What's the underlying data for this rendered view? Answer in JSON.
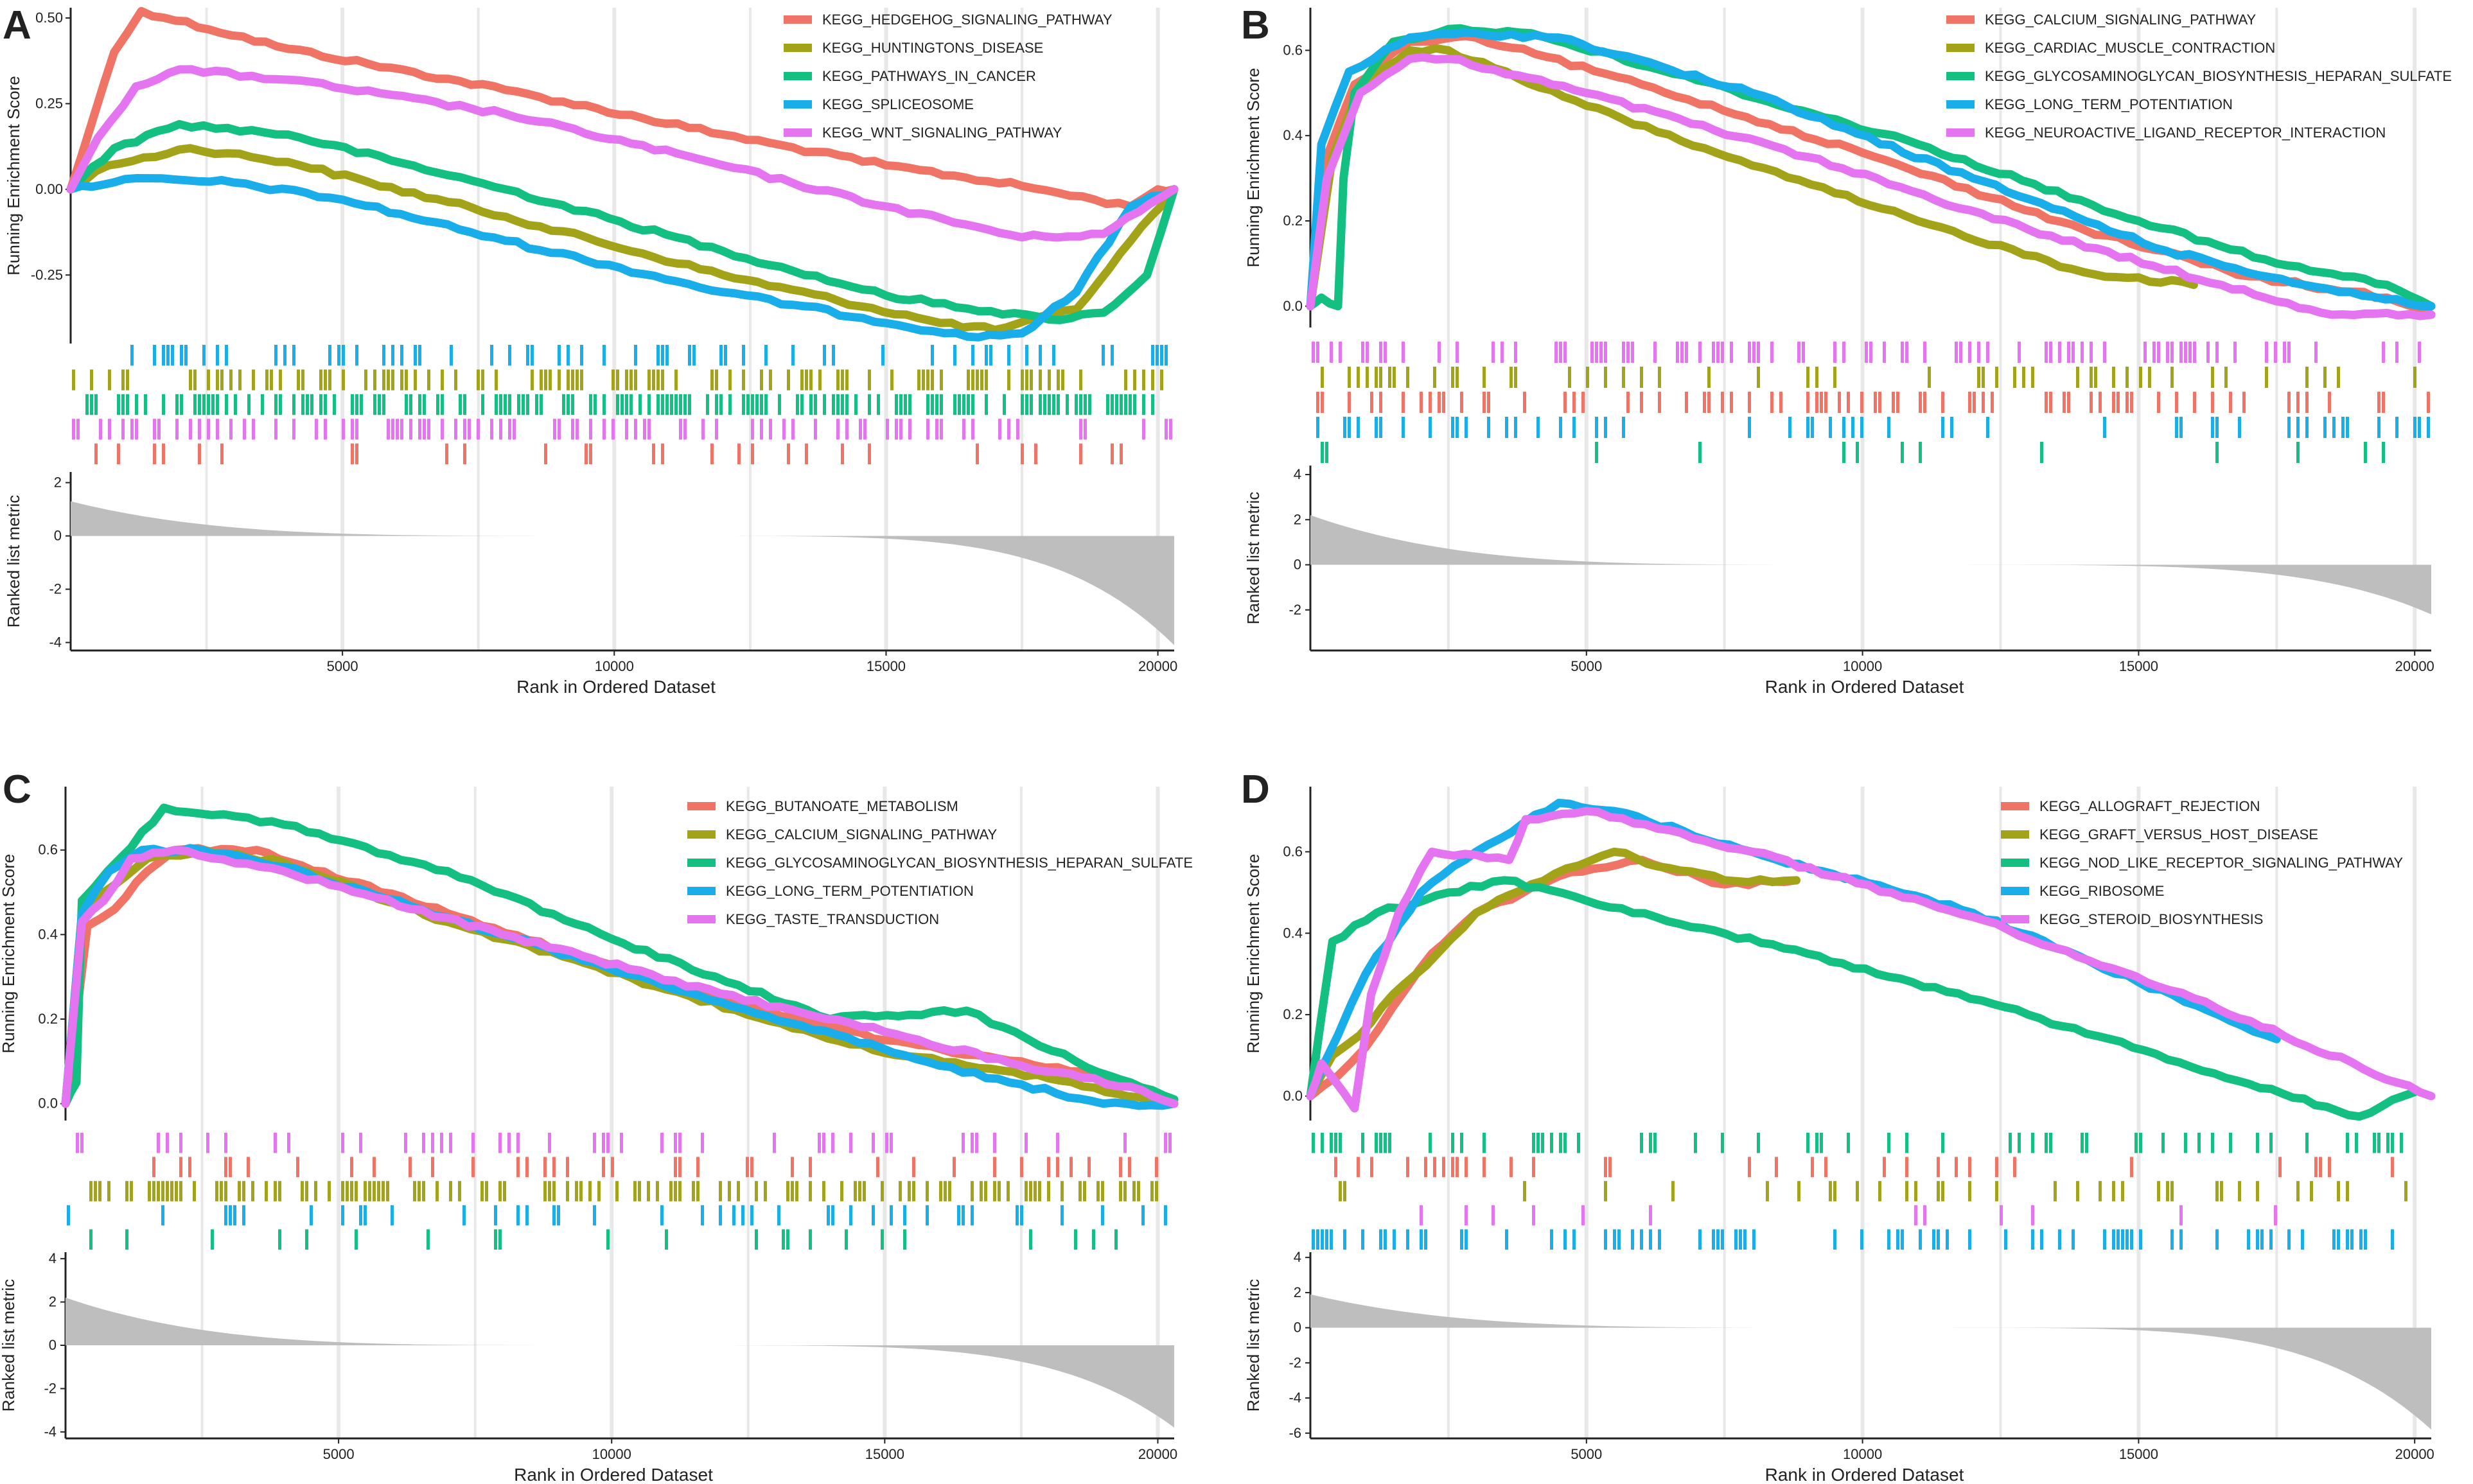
{
  "figure": {
    "panel_letters": [
      "A",
      "B",
      "C",
      "D"
    ]
  },
  "colors": {
    "red": "#F07466",
    "olive": "#A3A31A",
    "green": "#14BF82",
    "blue": "#19AEEA",
    "magenta": "#E474F0",
    "gray": "#BEBEBE"
  },
  "chart_data": [
    {
      "type": "line",
      "panel": "A",
      "xlabel": "Rank in Ordered Dataset",
      "ylabel_top": "Running Enrichment Score",
      "ylabel_bottom": "Ranked list metric",
      "xlim": [
        0,
        20300
      ],
      "ylim": [
        -0.45,
        0.53
      ],
      "xticks": [
        "5000",
        "10000",
        "15000",
        "20000"
      ],
      "xtick_values": [
        5000,
        10000,
        15000,
        20000
      ],
      "yticks": [
        "-0.25",
        "0.00",
        "0.25",
        "0.50"
      ],
      "ytick_values": [
        -0.25,
        0,
        0.25,
        0.5
      ],
      "metric_ylim": [
        -4.3,
        2.4
      ],
      "metric_yticks": [
        "-4",
        "-2",
        "0",
        "2"
      ],
      "metric_ytick_values": [
        -4,
        -2,
        0,
        2
      ],
      "metric_max": 1.3,
      "metric_min": -4.1,
      "series": [
        {
          "name": "KEGG_HEDGEHOG_SIGNALING_PATHWAY",
          "color": "red",
          "x": [
            0,
            400,
            800,
            1300,
            4000,
            8000,
            12000,
            15000,
            17500,
            19500,
            20000,
            20300
          ],
          "y": [
            0,
            0.2,
            0.4,
            0.52,
            0.41,
            0.29,
            0.16,
            0.07,
            0.01,
            -0.05,
            0.0,
            0.0
          ]
        },
        {
          "name": "KEGG_HUNTINGTONS_DISEASE",
          "color": "olive",
          "x": [
            0,
            700,
            2200,
            4000,
            8000,
            12000,
            16000,
            17000,
            18500,
            19500,
            20300
          ],
          "y": [
            0,
            0.07,
            0.12,
            0.08,
            -0.08,
            -0.25,
            -0.39,
            -0.41,
            -0.35,
            -0.15,
            0.0
          ]
        },
        {
          "name": "KEGG_PATHWAYS_IN_CANCER",
          "color": "green",
          "x": [
            0,
            800,
            2000,
            4000,
            8000,
            12000,
            15000,
            18000,
            19000,
            19800,
            20300
          ],
          "y": [
            0,
            0.12,
            0.19,
            0.16,
            0.0,
            -0.18,
            -0.31,
            -0.38,
            -0.36,
            -0.25,
            0.0
          ]
        },
        {
          "name": "KEGG_SPLICEOSOME",
          "color": "blue",
          "x": [
            0,
            1000,
            3000,
            5000,
            8000,
            12000,
            16500,
            17500,
            18500,
            19500,
            20300
          ],
          "y": [
            0,
            0.03,
            0.02,
            -0.03,
            -0.15,
            -0.3,
            -0.43,
            -0.42,
            -0.3,
            -0.05,
            0.0
          ]
        },
        {
          "name": "KEGG_WNT_SIGNALING_PATHWAY",
          "color": "magenta",
          "x": [
            0,
            500,
            1200,
            2000,
            4000,
            8000,
            12000,
            15000,
            17500,
            19000,
            20300
          ],
          "y": [
            0,
            0.15,
            0.3,
            0.35,
            0.32,
            0.22,
            0.07,
            -0.05,
            -0.14,
            -0.13,
            0.0
          ]
        }
      ],
      "hit_rows": [
        {
          "color": "blue",
          "density": 0.28
        },
        {
          "color": "olive",
          "density": 0.34
        },
        {
          "color": "green",
          "density": 0.55
        },
        {
          "color": "magenta",
          "density": 0.32
        },
        {
          "color": "red",
          "density": 0.12
        }
      ]
    },
    {
      "type": "line",
      "panel": "B",
      "xlabel": "Rank in Ordered Dataset",
      "ylabel_top": "Running Enrichment Score",
      "ylabel_bottom": "Ranked list metric",
      "xlim": [
        0,
        20300
      ],
      "ylim": [
        -0.05,
        0.7
      ],
      "xticks": [
        "5000",
        "10000",
        "15000",
        "20000"
      ],
      "xtick_values": [
        5000,
        10000,
        15000,
        20000
      ],
      "yticks": [
        "0.0",
        "0.2",
        "0.4",
        "0.6"
      ],
      "ytick_values": [
        0,
        0.2,
        0.4,
        0.6
      ],
      "metric_ylim": [
        -3.8,
        4.4
      ],
      "metric_yticks": [
        "-2",
        "0",
        "2",
        "4"
      ],
      "metric_ytick_values": [
        -2,
        0,
        2,
        4
      ],
      "metric_max": 2.2,
      "metric_min": -2.2,
      "series": [
        {
          "name": "KEGG_CALCIUM_SIGNALING_PATHWAY",
          "color": "red",
          "x": [
            0,
            300,
            800,
            1800,
            3000,
            6000,
            10000,
            14000,
            17000,
            19500,
            20300
          ],
          "y": [
            0,
            0.35,
            0.52,
            0.62,
            0.63,
            0.52,
            0.36,
            0.18,
            0.07,
            0.02,
            -0.02
          ]
        },
        {
          "name": "KEGG_CARDIAC_MUSCLE_CONTRACTION",
          "color": "olive",
          "x": [
            0,
            400,
            900,
            1800,
            2500,
            5000,
            8000,
            11000,
            14000,
            16000
          ],
          "y": [
            0,
            0.35,
            0.52,
            0.6,
            0.6,
            0.47,
            0.33,
            0.2,
            0.08,
            0.05
          ]
        },
        {
          "name": "KEGG_GLYCOSAMINOGLYCAN_BIOSYNTHESIS_HEPARAN_SULFATE",
          "color": "green",
          "x": [
            0,
            200,
            500,
            600,
            800,
            1500,
            2500,
            4000,
            7000,
            11000,
            15000,
            17500,
            19500,
            20300
          ],
          "y": [
            0,
            0.02,
            0.0,
            0.3,
            0.5,
            0.62,
            0.65,
            0.64,
            0.53,
            0.38,
            0.2,
            0.1,
            0.05,
            0.0
          ]
        },
        {
          "name": "KEGG_LONG_TERM_POTENTIATION",
          "color": "blue",
          "x": [
            0,
            200,
            700,
            1800,
            3000,
            4500,
            8000,
            12000,
            15500,
            18000,
            20300
          ],
          "y": [
            0,
            0.38,
            0.55,
            0.63,
            0.64,
            0.63,
            0.5,
            0.3,
            0.13,
            0.05,
            0.0
          ]
        },
        {
          "name": "KEGG_NEUROACTIVE_LIGAND_RECEPTOR_INTERACTION",
          "color": "magenta",
          "x": [
            0,
            300,
            900,
            1800,
            2500,
            5000,
            9000,
            13000,
            16500,
            18500,
            20300
          ],
          "y": [
            0,
            0.3,
            0.5,
            0.58,
            0.58,
            0.5,
            0.35,
            0.18,
            0.05,
            -0.02,
            -0.02
          ]
        }
      ],
      "hit_rows": [
        {
          "color": "magenta",
          "density": 0.34
        },
        {
          "color": "olive",
          "density": 0.24
        },
        {
          "color": "red",
          "density": 0.32
        },
        {
          "color": "blue",
          "density": 0.18
        },
        {
          "color": "green",
          "density": 0.07
        }
      ]
    },
    {
      "type": "line",
      "panel": "C",
      "xlabel": "Rank in Ordered Dataset",
      "ylabel_top": "Running Enrichment Score",
      "ylabel_bottom": "Ranked list metric",
      "xlim": [
        0,
        20300
      ],
      "ylim": [
        -0.04,
        0.75
      ],
      "xticks": [
        "5000",
        "10000",
        "15000",
        "20000"
      ],
      "xtick_values": [
        5000,
        10000,
        15000,
        20000
      ],
      "yticks": [
        "0.0",
        "0.2",
        "0.4",
        "0.6"
      ],
      "ytick_values": [
        0,
        0.2,
        0.4,
        0.6
      ],
      "metric_ylim": [
        -4.3,
        4.3
      ],
      "metric_yticks": [
        "-4",
        "-2",
        "0",
        "2",
        "4"
      ],
      "metric_ytick_values": [
        -4,
        -2,
        0,
        2,
        4
      ],
      "metric_max": 2.2,
      "metric_min": -3.8,
      "series": [
        {
          "name": "KEGG_BUTANOATE_METABOLISM",
          "color": "red",
          "x": [
            0,
            400,
            900,
            1500,
            2000,
            3500,
            7000,
            11000,
            15000,
            17500,
            19500,
            20300
          ],
          "y": [
            0,
            0.42,
            0.46,
            0.55,
            0.6,
            0.6,
            0.45,
            0.28,
            0.15,
            0.1,
            0.05,
            0.0
          ]
        },
        {
          "name": "KEGG_CALCIUM_SIGNALING_PATHWAY",
          "color": "olive",
          "x": [
            0,
            300,
            700,
            1500,
            2500,
            4000,
            7000,
            11000,
            15000,
            18000,
            20300
          ],
          "y": [
            0,
            0.45,
            0.5,
            0.58,
            0.6,
            0.57,
            0.43,
            0.27,
            0.12,
            0.06,
            0.0
          ]
        },
        {
          "name": "KEGG_GLYCOSAMINOGLYCAN_BIOSYNTHESIS_HEPARAN_SULFATE",
          "color": "green",
          "x": [
            0,
            200,
            300,
            1000,
            1800,
            4000,
            7000,
            10000,
            14000,
            16500,
            18500,
            20300
          ],
          "y": [
            0,
            0.05,
            0.48,
            0.58,
            0.7,
            0.66,
            0.55,
            0.39,
            0.2,
            0.22,
            0.1,
            0.01
          ]
        },
        {
          "name": "KEGG_LONG_TERM_POTENTIATION",
          "color": "blue",
          "x": [
            0,
            300,
            800,
            1400,
            2500,
            4000,
            8000,
            12000,
            16000,
            19000,
            20300
          ],
          "y": [
            0,
            0.45,
            0.55,
            0.6,
            0.6,
            0.56,
            0.4,
            0.24,
            0.09,
            0.0,
            0.0
          ]
        },
        {
          "name": "KEGG_TASTE_TRANSDUCTION",
          "color": "magenta",
          "x": [
            0,
            300,
            700,
            1200,
            2000,
            4000,
            8000,
            12000,
            15000,
            17500,
            19500,
            20300
          ],
          "y": [
            0,
            0.43,
            0.48,
            0.58,
            0.6,
            0.55,
            0.4,
            0.26,
            0.17,
            0.09,
            0.04,
            0.0
          ]
        }
      ],
      "hit_rows": [
        {
          "color": "magenta",
          "density": 0.15
        },
        {
          "color": "red",
          "density": 0.14
        },
        {
          "color": "olive",
          "density": 0.4
        },
        {
          "color": "blue",
          "density": 0.16
        },
        {
          "color": "green",
          "density": 0.08
        }
      ]
    },
    {
      "type": "line",
      "panel": "D",
      "xlabel": "Rank in Ordered Dataset",
      "ylabel_top": "Running Enrichment Score",
      "ylabel_bottom": "Ranked list metric",
      "xlim": [
        0,
        20300
      ],
      "ylim": [
        -0.06,
        0.76
      ],
      "xticks": [
        "5000",
        "10000",
        "15000",
        "20000"
      ],
      "xtick_values": [
        5000,
        10000,
        15000,
        20000
      ],
      "yticks": [
        "0.0",
        "0.2",
        "0.4",
        "0.6"
      ],
      "ytick_values": [
        0,
        0.2,
        0.4,
        0.6
      ],
      "metric_ylim": [
        -6.3,
        4.3
      ],
      "metric_yticks": [
        "-6",
        "-4",
        "-2",
        "0",
        "2",
        "4"
      ],
      "metric_ytick_values": [
        -6,
        -4,
        -2,
        0,
        2,
        4
      ],
      "metric_max": 1.9,
      "metric_min": -5.8,
      "series": [
        {
          "name": "KEGG_ALLOGRAFT_REJECTION",
          "color": "red",
          "x": [
            0,
            500,
            1000,
            1500,
            2200,
            3000,
            4500,
            6000,
            7500,
            8800
          ],
          "y": [
            0,
            0.05,
            0.12,
            0.22,
            0.35,
            0.45,
            0.54,
            0.58,
            0.52,
            0.53
          ]
        },
        {
          "name": "KEGG_GRAFT_VERSUS_HOST_DISEASE",
          "color": "olive",
          "x": [
            0,
            400,
            900,
            1500,
            2300,
            3000,
            4000,
            5500,
            6500,
            7500,
            8800
          ],
          "y": [
            0,
            0.1,
            0.15,
            0.25,
            0.35,
            0.45,
            0.52,
            0.6,
            0.56,
            0.53,
            0.53
          ]
        },
        {
          "name": "KEGG_NOD_LIKE_RECEPTOR_SIGNALING_PATHWAY",
          "color": "green",
          "x": [
            0,
            400,
            1200,
            2500,
            3500,
            5000,
            9000,
            13000,
            17000,
            19000,
            20000
          ],
          "y": [
            0,
            0.38,
            0.45,
            0.5,
            0.53,
            0.48,
            0.35,
            0.2,
            0.03,
            -0.05,
            0.01
          ]
        },
        {
          "name": "KEGG_RIBOSOME",
          "color": "blue",
          "x": [
            0,
            500,
            1000,
            2000,
            3000,
            4500,
            5500,
            8000,
            12000,
            15000,
            17500
          ],
          "y": [
            0,
            0.15,
            0.3,
            0.5,
            0.6,
            0.72,
            0.7,
            0.6,
            0.45,
            0.28,
            0.14
          ]
        },
        {
          "name": "KEGG_STEROID_BIOSYNTHESIS",
          "color": "magenta",
          "x": [
            0,
            200,
            800,
            1100,
            1600,
            2200,
            3600,
            3900,
            5000,
            8000,
            12000,
            16000,
            20300
          ],
          "y": [
            0,
            0.08,
            -0.03,
            0.25,
            0.45,
            0.6,
            0.58,
            0.68,
            0.7,
            0.6,
            0.44,
            0.24,
            0.0
          ]
        }
      ],
      "hit_rows": [
        {
          "color": "green",
          "density": 0.2
        },
        {
          "color": "red",
          "density": 0.12
        },
        {
          "color": "olive",
          "density": 0.12
        },
        {
          "color": "magenta",
          "density": 0.05
        },
        {
          "color": "blue",
          "density": 0.3
        }
      ]
    }
  ]
}
